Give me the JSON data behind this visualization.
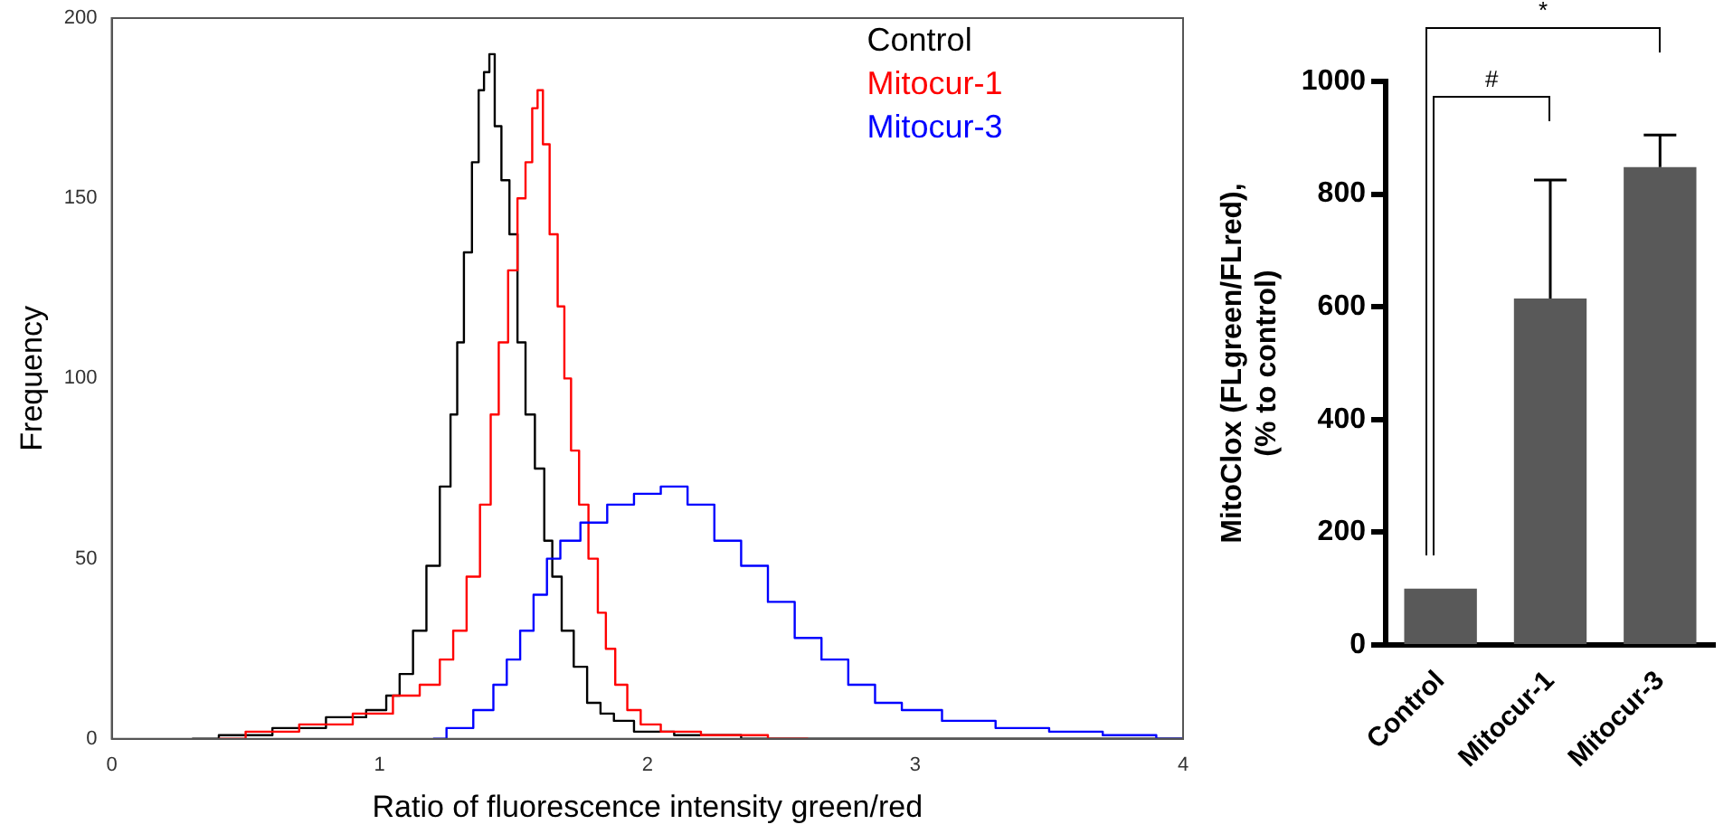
{
  "chart_data": [
    {
      "type": "step",
      "xlabel": "Ratio of fluorescence intensity green/red",
      "ylabel": "Frequency",
      "xlim": [
        0,
        4
      ],
      "xticks": [
        0,
        1,
        2,
        3,
        4
      ],
      "ylim": [
        0,
        200
      ],
      "yticks": [
        0,
        50,
        100,
        150,
        200
      ],
      "grid": false,
      "legend": "top right",
      "marker": "none",
      "series": [
        {
          "name": "Control",
          "color": "#000000",
          "x": [
            0.3,
            0.5,
            0.7,
            0.9,
            1.0,
            1.05,
            1.1,
            1.15,
            1.2,
            1.25,
            1.28,
            1.3,
            1.33,
            1.36,
            1.38,
            1.4,
            1.42,
            1.44,
            1.47,
            1.5,
            1.53,
            1.56,
            1.6,
            1.63,
            1.66,
            1.7,
            1.75,
            1.8,
            1.85,
            1.9,
            2.0,
            2.2,
            2.5,
            3.0,
            4.0
          ],
          "values": [
            0,
            1,
            3,
            6,
            8,
            12,
            18,
            30,
            48,
            70,
            90,
            110,
            135,
            160,
            180,
            185,
            190,
            170,
            155,
            140,
            110,
            90,
            75,
            55,
            45,
            30,
            20,
            10,
            7,
            5,
            2,
            1,
            0,
            0,
            0
          ]
        },
        {
          "name": "Mitocur-1",
          "color": "#ff0000",
          "x": [
            0.4,
            0.6,
            0.8,
            1.0,
            1.1,
            1.2,
            1.25,
            1.3,
            1.35,
            1.4,
            1.43,
            1.46,
            1.5,
            1.53,
            1.56,
            1.58,
            1.6,
            1.62,
            1.65,
            1.68,
            1.7,
            1.73,
            1.76,
            1.8,
            1.83,
            1.86,
            1.9,
            1.95,
            2.0,
            2.1,
            2.3,
            2.6
          ],
          "values": [
            0,
            2,
            4,
            7,
            12,
            15,
            22,
            30,
            45,
            65,
            90,
            110,
            130,
            150,
            160,
            175,
            180,
            165,
            140,
            120,
            100,
            80,
            65,
            50,
            35,
            25,
            15,
            8,
            4,
            2,
            1,
            0
          ]
        },
        {
          "name": "Mitocur-3",
          "color": "#0000ff",
          "x": [
            1.2,
            1.3,
            1.4,
            1.45,
            1.5,
            1.55,
            1.6,
            1.65,
            1.7,
            1.8,
            1.9,
            2.0,
            2.1,
            2.2,
            2.3,
            2.4,
            2.5,
            2.6,
            2.7,
            2.8,
            2.9,
            3.0,
            3.2,
            3.4,
            3.6,
            3.8,
            4.0
          ],
          "values": [
            0,
            3,
            8,
            15,
            22,
            30,
            40,
            50,
            55,
            60,
            65,
            68,
            70,
            65,
            55,
            48,
            38,
            28,
            22,
            15,
            10,
            8,
            5,
            3,
            2,
            1,
            0
          ]
        }
      ]
    },
    {
      "type": "bar",
      "ylabel": "MitoClox (FLgreen/FLred),\n(% to control)",
      "categories": [
        "Control",
        "Mitocur-1",
        "Mitocur-3"
      ],
      "values": [
        100,
        615,
        848
      ],
      "errors": [
        null,
        [
          615,
          825
        ],
        [
          848,
          905
        ]
      ],
      "color": "#595959",
      "ylim": [
        0,
        1000
      ],
      "yticks": [
        0,
        200,
        400,
        600,
        800,
        1000
      ],
      "grid": false,
      "legend": false,
      "annotations": [
        "#",
        "*"
      ]
    }
  ]
}
